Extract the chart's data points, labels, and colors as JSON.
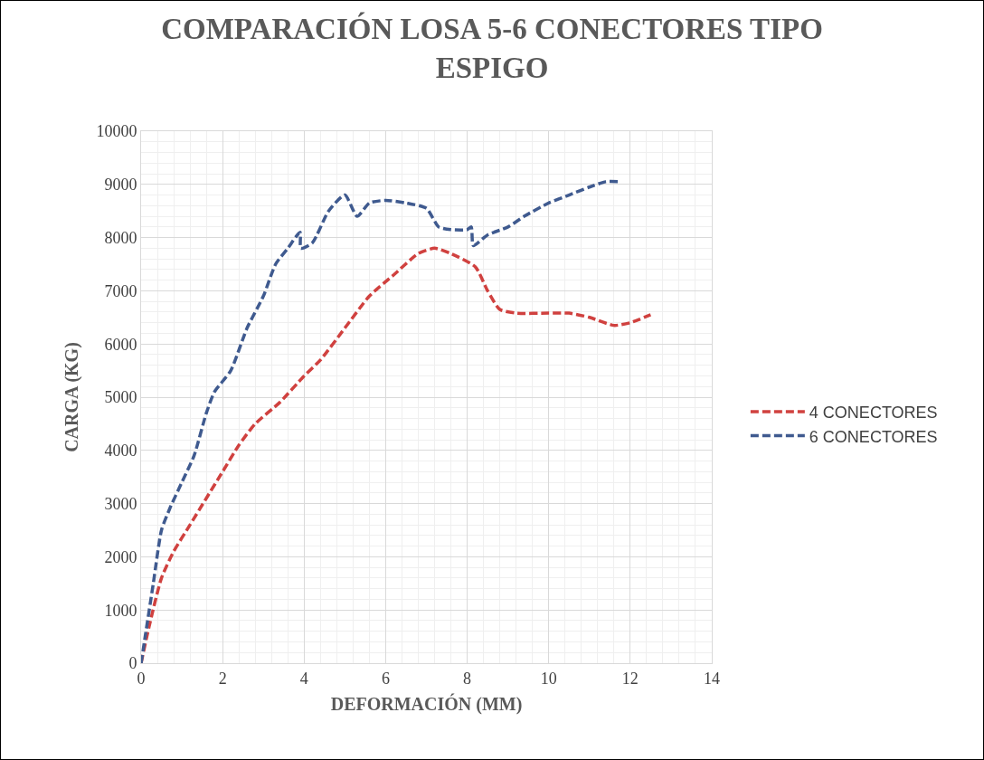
{
  "chart_data": {
    "type": "line",
    "title": "COMPARACIÓN LOSA 5-6 CONECTORES TIPO ESPIGO",
    "xlabel": "DEFORMACIÓN (MM)",
    "ylabel": "CARGA (KG)",
    "xlim": [
      0,
      14
    ],
    "xticks": [
      0,
      2,
      4,
      6,
      8,
      10,
      12,
      14
    ],
    "ylim": [
      0,
      10000
    ],
    "yticks": [
      0,
      1000,
      2000,
      3000,
      4000,
      5000,
      6000,
      7000,
      8000,
      9000,
      10000
    ],
    "grid": true,
    "legend": "right",
    "line_style": "dashed",
    "series": [
      {
        "name": "4 CONECTORES",
        "color": "#d0413f",
        "x": [
          0,
          0.2,
          0.5,
          0.8,
          1.2,
          1.6,
          2.0,
          2.4,
          2.8,
          3.4,
          4.0,
          4.4,
          5.0,
          5.6,
          6.2,
          6.8,
          7.2,
          7.6,
          8.2,
          8.5,
          8.8,
          9.2,
          10.0,
          10.5,
          11.0,
          11.6,
          12.0,
          12.5
        ],
        "values": [
          0,
          700,
          1600,
          2100,
          2600,
          3100,
          3600,
          4100,
          4500,
          4900,
          5400,
          5700,
          6300,
          6900,
          7300,
          7700,
          7800,
          7700,
          7450,
          7000,
          6650,
          6580,
          6580,
          6580,
          6500,
          6350,
          6400,
          6550
        ]
      },
      {
        "name": "6 CONECTORES",
        "color": "#3f5a8f",
        "x": [
          0,
          0.1,
          0.3,
          0.5,
          0.7,
          1.0,
          1.3,
          1.6,
          1.8,
          2.2,
          2.6,
          3.0,
          3.3,
          3.6,
          3.9,
          3.92,
          4.2,
          4.6,
          5.0,
          5.3,
          5.6,
          6.0,
          6.5,
          7.0,
          7.3,
          7.6,
          8.0,
          8.1,
          8.15,
          8.5,
          9.0,
          9.4,
          10.0,
          10.5,
          11.0,
          11.4,
          11.75
        ],
        "values": [
          0,
          500,
          1500,
          2500,
          2900,
          3400,
          3900,
          4700,
          5100,
          5500,
          6300,
          6900,
          7500,
          7800,
          8100,
          7800,
          7900,
          8500,
          8800,
          8400,
          8650,
          8700,
          8650,
          8550,
          8200,
          8150,
          8150,
          8200,
          7850,
          8050,
          8200,
          8400,
          8650,
          8800,
          8950,
          9050,
          9050
        ]
      }
    ]
  }
}
